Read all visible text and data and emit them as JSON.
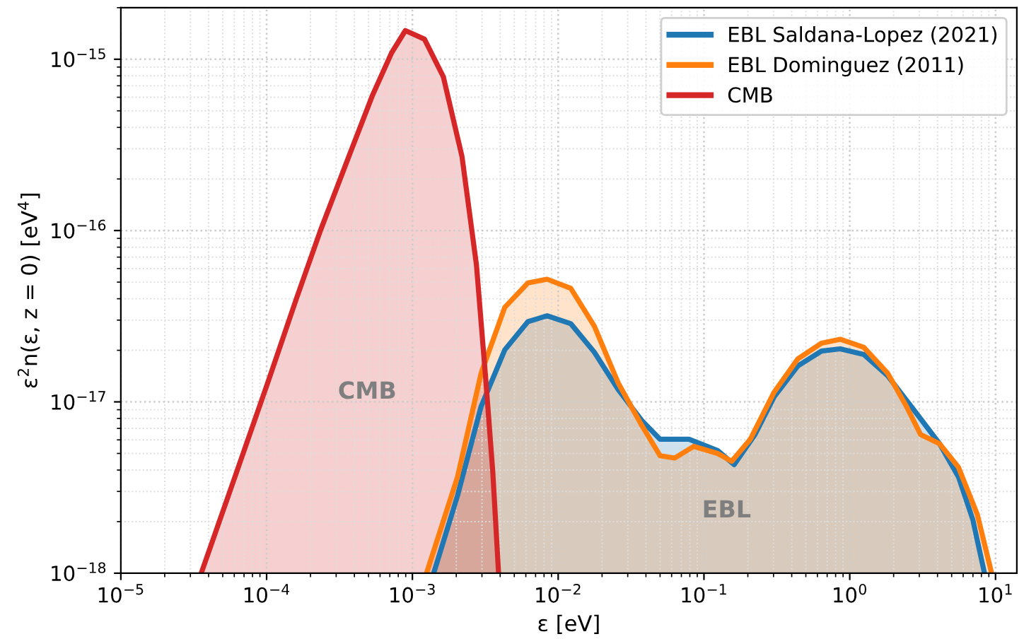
{
  "chart_data": {
    "type": "area",
    "xlabel": "ε [eV]",
    "ylabel": "ε$^{2}$n(ε, z = 0) [eV$^{4}$]",
    "log": "xy",
    "grid": true,
    "legend": "top right",
    "xlim": [
      1e-05,
      14
    ],
    "ylim": [
      1e-18,
      2e-15
    ],
    "xticks": [
      {
        "value": 1e-05,
        "label": "10$^{−5}$"
      },
      {
        "value": 0.0001,
        "label": "10$^{−4}$"
      },
      {
        "value": 0.001,
        "label": "10$^{−3}$"
      },
      {
        "value": 0.01,
        "label": "10$^{−2}$"
      },
      {
        "value": 0.1,
        "label": "10$^{−1}$"
      },
      {
        "value": 1,
        "label": "10$^{0}$"
      },
      {
        "value": 10,
        "label": "10$^{1}$"
      }
    ],
    "yticks": [
      {
        "value": 1e-18,
        "label": "10$^{−18}$"
      },
      {
        "value": 1e-17,
        "label": "10$^{−17}$"
      },
      {
        "value": 1e-16,
        "label": "10$^{−16}$"
      },
      {
        "value": 1e-15,
        "label": "10$^{−15}$"
      }
    ],
    "series": [
      {
        "name": "EBL Saldana-Lopez (2021)",
        "color": "#1f77b4",
        "x": [
          0.0014,
          0.00204,
          0.00296,
          0.0043,
          0.0062,
          0.0084,
          0.0122,
          0.0177,
          0.0258,
          0.0374,
          0.05,
          0.079,
          0.124,
          0.161,
          0.224,
          0.303,
          0.44,
          0.64,
          0.86,
          1.25,
          1.82,
          2.64,
          4.13,
          5.57,
          6.97,
          8.4
        ],
        "values": [
          1e-18,
          2.84e-18,
          9.4e-18,
          2.01e-17,
          2.94e-17,
          3.18e-17,
          2.86e-17,
          1.95e-17,
          1.18e-17,
          7.8e-18,
          6.05e-18,
          6.05e-18,
          5.2e-18,
          4.3e-18,
          6.45e-18,
          1.07e-17,
          1.62e-17,
          1.98e-17,
          2.04e-17,
          1.89e-17,
          1.42e-17,
          9.4e-18,
          5.7e-18,
          3.65e-18,
          2.07e-18,
          1e-18
        ]
      },
      {
        "name": "EBL Dominguez (2011)",
        "color": "#ff7f0e",
        "x": [
          0.00125,
          0.00204,
          0.00296,
          0.0043,
          0.0062,
          0.0084,
          0.0122,
          0.0177,
          0.0258,
          0.0374,
          0.05,
          0.063,
          0.085,
          0.124,
          0.155,
          0.208,
          0.303,
          0.44,
          0.64,
          0.86,
          1.25,
          1.82,
          2.45,
          3.06,
          4.13,
          5.57,
          7.5,
          9.4
        ],
        "values": [
          1e-18,
          3.65e-18,
          1.47e-17,
          3.56e-17,
          4.95e-17,
          5.2e-17,
          4.6e-17,
          2.77e-17,
          1.29e-17,
          7.3e-18,
          4.85e-18,
          4.7e-18,
          5.5e-18,
          5e-18,
          4.5e-18,
          6.05e-18,
          1.14e-17,
          1.78e-17,
          2.2e-17,
          2.32e-17,
          2.08e-17,
          1.47e-17,
          9.4e-18,
          6.45e-18,
          5.7e-18,
          4.15e-18,
          2.2e-18,
          1e-18
        ]
      },
      {
        "name": "CMB",
        "color": "#d62728",
        "x": [
          3.56e-05,
          6.1e-05,
          0.000102,
          0.00016,
          0.000234,
          0.000366,
          0.00053,
          0.00072,
          0.000895,
          0.00121,
          0.00163,
          0.00219,
          0.00275,
          0.00318,
          0.00356,
          0.0039
        ],
        "values": [
          1e-18,
          3.7e-18,
          1.3e-17,
          4e-17,
          1e-16,
          2.7e-16,
          6.1e-16,
          1.09e-15,
          1.47e-15,
          1.31e-15,
          7.9e-16,
          2.7e-16,
          6.3e-17,
          1.38e-17,
          3.9e-18,
          1e-18
        ]
      }
    ],
    "annotations": [
      "CMB",
      "EBL"
    ]
  }
}
